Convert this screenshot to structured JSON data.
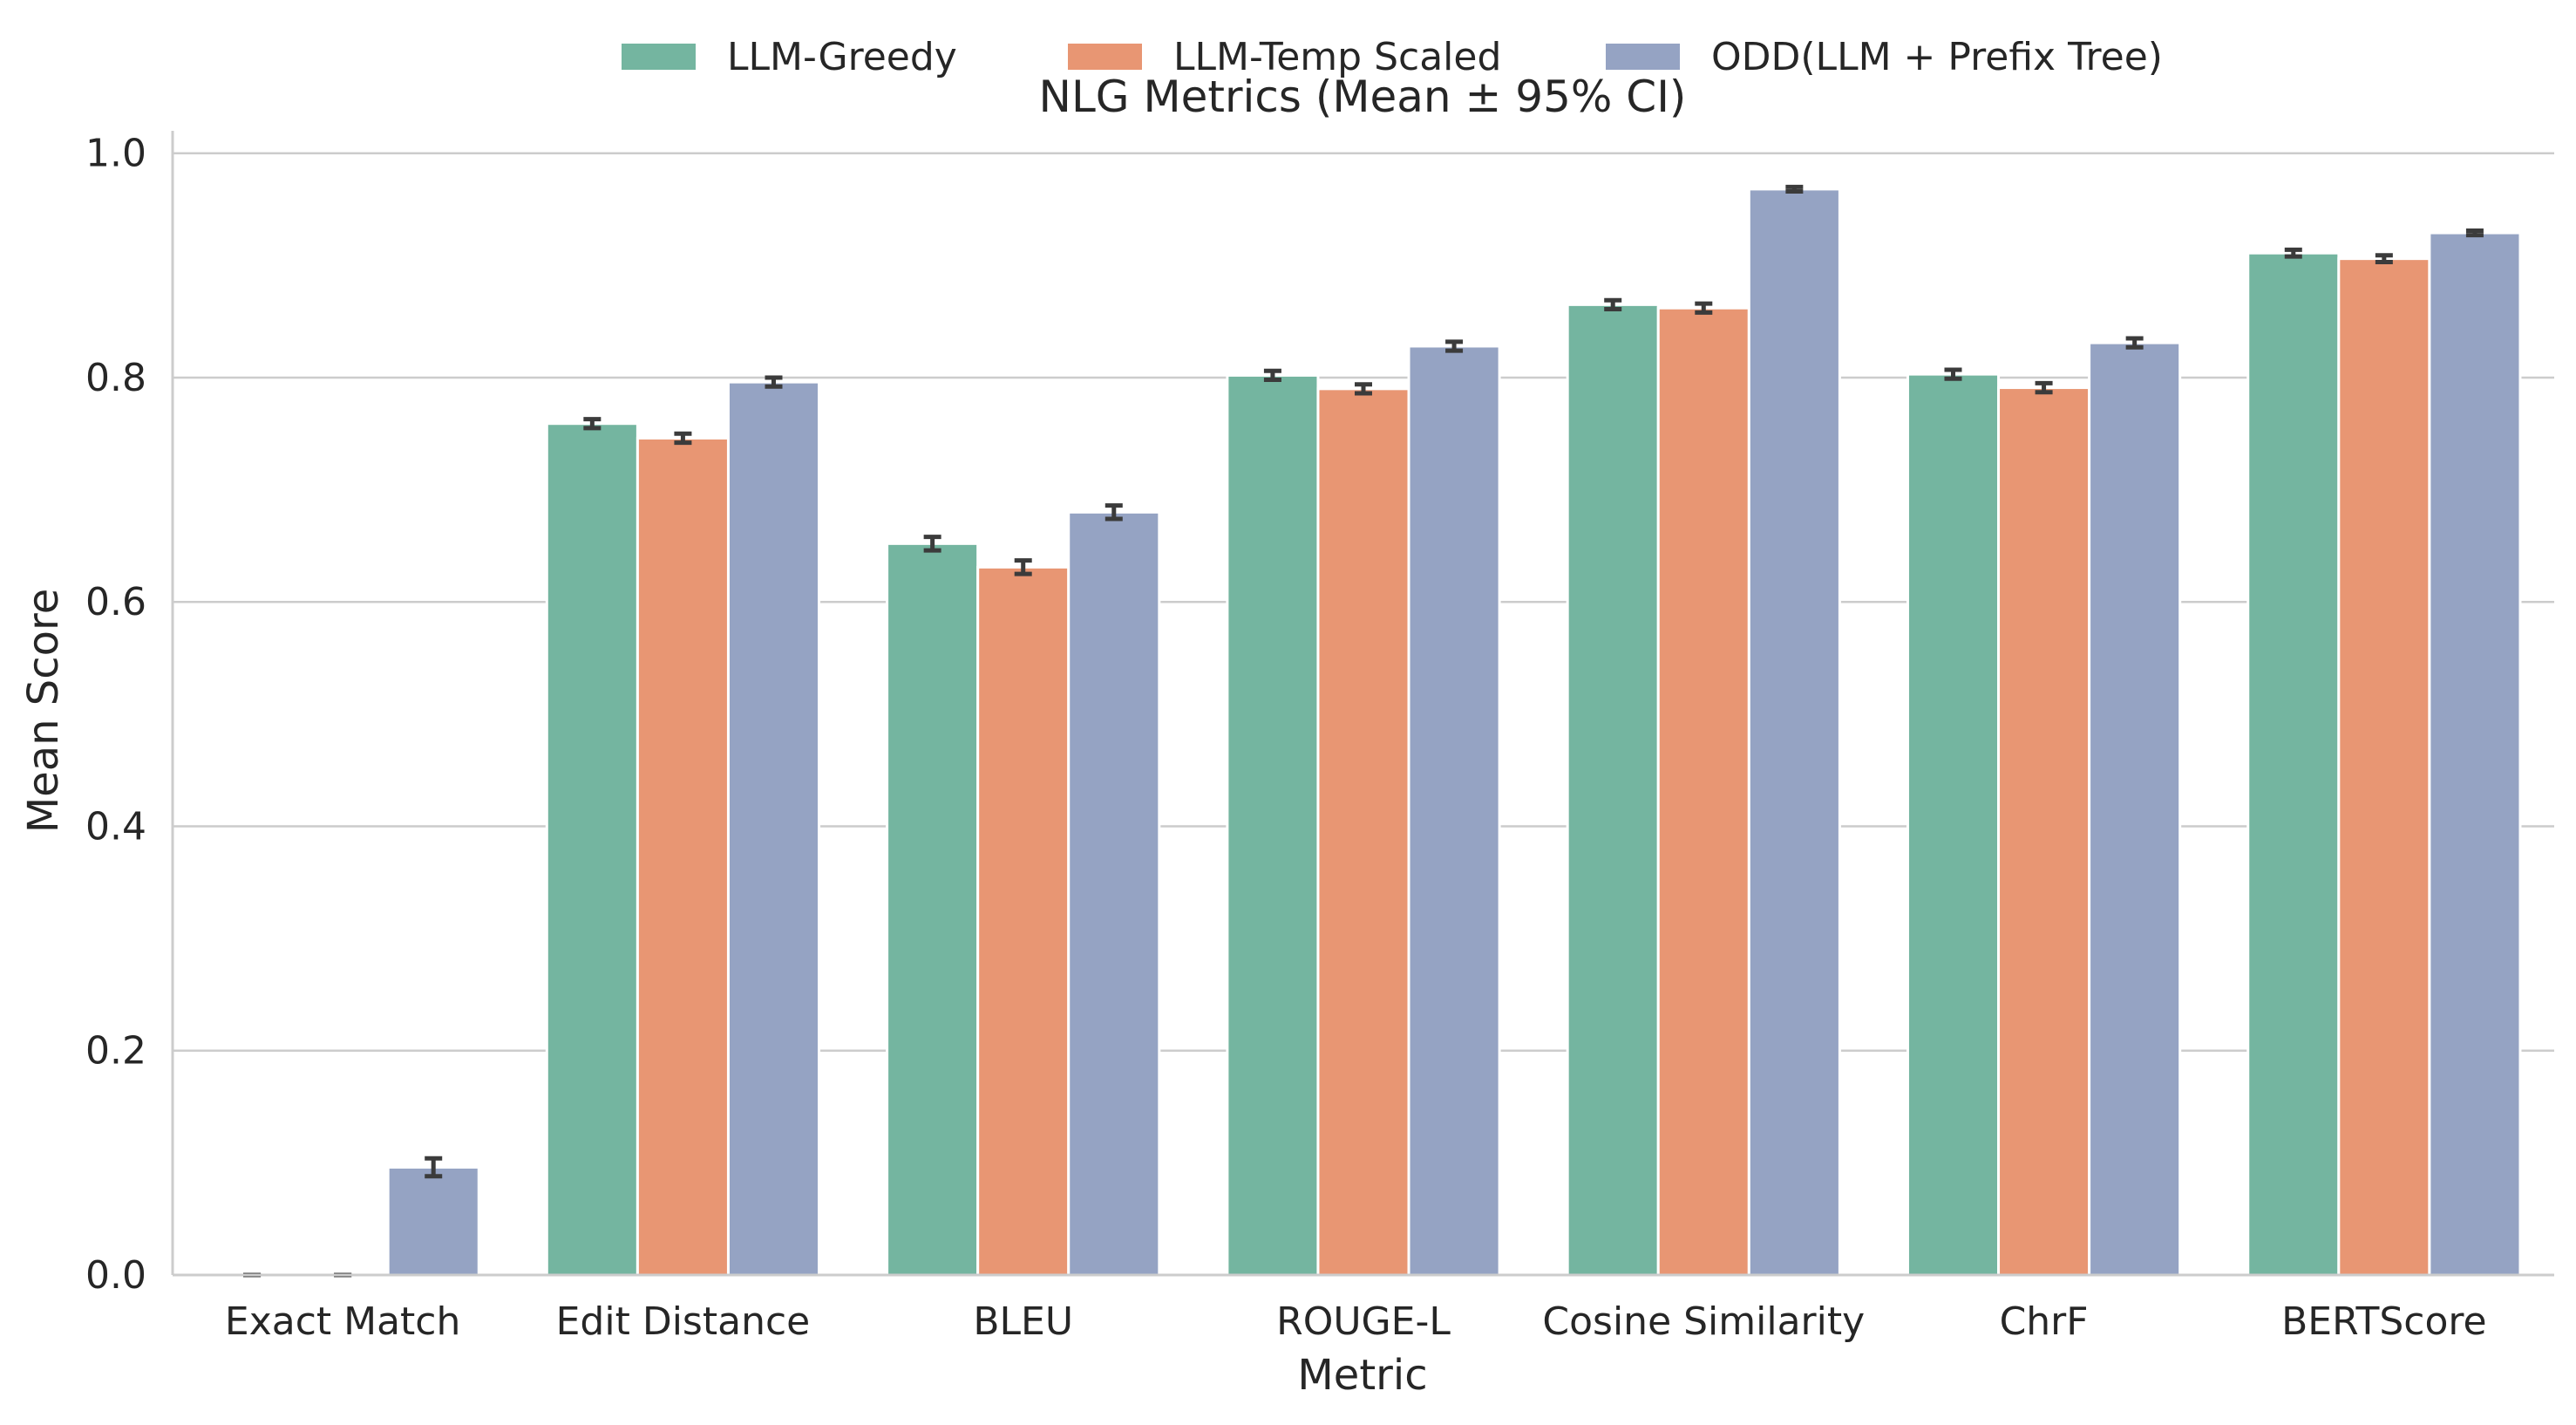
{
  "chart_data": {
    "type": "bar",
    "title": "NLG Metrics (Mean ± 95% CI)",
    "xlabel": "Metric",
    "ylabel": "Mean Score",
    "ylim": [
      0,
      1.02
    ],
    "yticks": [
      0.0,
      0.2,
      0.4,
      0.6,
      0.8,
      1.0
    ],
    "ytick_labels": [
      "0.0",
      "0.2",
      "0.4",
      "0.6",
      "0.8",
      "1.0"
    ],
    "grid": "horizontal",
    "legend_position": "top-center",
    "categories": [
      "Exact Match",
      "Edit Distance",
      "BLEU",
      "ROUGE-L",
      "Cosine Similarity",
      "ChrF",
      "BERTScore"
    ],
    "series": [
      {
        "name": "LLM-Greedy",
        "color": "#74b5a0",
        "values": [
          0.0,
          0.759,
          0.652,
          0.802,
          0.865,
          0.803,
          0.911
        ],
        "ci": [
          0.0,
          0.004,
          0.006,
          0.004,
          0.004,
          0.004,
          0.003
        ]
      },
      {
        "name": "LLM-Temp Scaled",
        "color": "#e89673",
        "values": [
          0.0,
          0.746,
          0.631,
          0.79,
          0.862,
          0.791,
          0.906
        ],
        "ci": [
          0.0,
          0.004,
          0.006,
          0.004,
          0.004,
          0.004,
          0.003
        ]
      },
      {
        "name": "ODD(LLM + Prefix Tree)",
        "color": "#95a3c3",
        "values": [
          0.096,
          0.796,
          0.68,
          0.828,
          0.968,
          0.831,
          0.929
        ],
        "ci": [
          0.008,
          0.004,
          0.006,
          0.004,
          0.002,
          0.004,
          0.002
        ]
      }
    ]
  }
}
